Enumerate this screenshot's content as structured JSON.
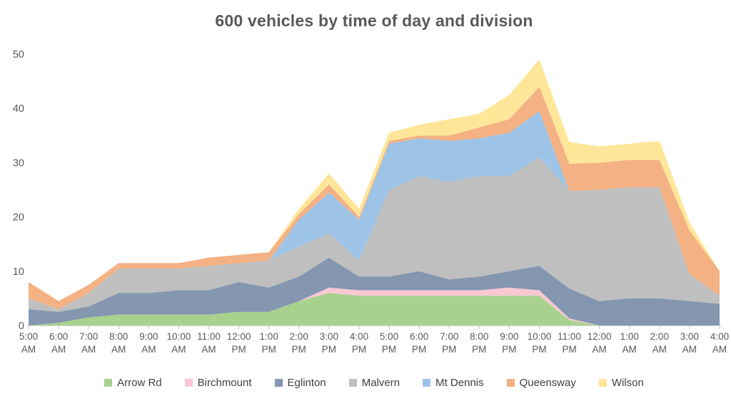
{
  "chart_data": {
    "type": "area",
    "stacked": true,
    "title": "600 vehicles by time of day and division",
    "xlabel": "",
    "ylabel": "",
    "ylim": [
      0,
      50
    ],
    "yticks": [
      0,
      10,
      20,
      30,
      40,
      50
    ],
    "grid": false,
    "legend_position": "bottom",
    "title_color": "#595959",
    "tick_label_color": "#595959",
    "legend_text_color": "#404040",
    "axis_line_color": "#d9d9d9",
    "axis_tick_color": "#bfbfbf",
    "categories": [
      "5:00 AM",
      "6:00 AM",
      "7:00 AM",
      "8:00 AM",
      "9:00 AM",
      "10:00 AM",
      "11:00 AM",
      "12:00 PM",
      "1:00 PM",
      "2:00 PM",
      "3:00 PM",
      "4:00 PM",
      "5:00 PM",
      "6:00 PM",
      "7:00 PM",
      "8:00 PM",
      "9:00 PM",
      "10:00 PM",
      "11:00 PM",
      "12:00 AM",
      "1:00 AM",
      "2:00 AM",
      "3:00 AM",
      "4:00 AM"
    ],
    "series": [
      {
        "name": "Arrow Rd",
        "color": "#a9d18e",
        "values": [
          0,
          0.5,
          1.5,
          2,
          2,
          2,
          2,
          2.5,
          2.5,
          4.5,
          6,
          5.5,
          5.5,
          5.5,
          5.5,
          5.5,
          5.5,
          5.5,
          1,
          0,
          0,
          0,
          0,
          0
        ]
      },
      {
        "name": "Birchmount",
        "color": "#f8c8d3",
        "values": [
          0,
          0,
          0,
          0,
          0,
          0,
          0,
          0,
          0,
          0,
          1,
          1,
          1,
          1,
          1,
          1,
          1.5,
          1,
          0.3,
          0,
          0,
          0,
          0,
          0
        ]
      },
      {
        "name": "Eglinton",
        "color": "#8496b0",
        "values": [
          3,
          2,
          2,
          4,
          4,
          4.5,
          4.5,
          5.5,
          4.5,
          4.5,
          5.5,
          2.5,
          2.5,
          3.5,
          2,
          2.5,
          3,
          4.5,
          5.5,
          4.5,
          5,
          5,
          4.5,
          4
        ]
      },
      {
        "name": "Malvern",
        "color": "#bfbfbf",
        "values": [
          2,
          0.5,
          2.5,
          4.5,
          4.5,
          4,
          4.5,
          3.5,
          5,
          5.5,
          4.5,
          3,
          16,
          17.5,
          18,
          18.5,
          17.5,
          20,
          18,
          20.5,
          20.5,
          20.5,
          5,
          1.5
        ]
      },
      {
        "name": "Mt Dennis",
        "color": "#9dc3e6",
        "values": [
          0,
          0,
          0,
          0,
          0,
          0,
          0,
          0,
          0,
          5,
          7.5,
          7.5,
          8.5,
          7,
          7.5,
          7,
          8,
          8.5,
          0,
          0,
          0,
          0,
          0,
          0
        ]
      },
      {
        "name": "Queensway",
        "color": "#f4b183",
        "values": [
          3,
          1.5,
          1.5,
          1,
          1,
          1,
          1.5,
          1.5,
          1.5,
          1,
          1.5,
          0.5,
          0.5,
          0.5,
          1,
          2,
          2.5,
          4.5,
          5,
          5,
          5,
          5,
          8,
          4.5
        ]
      },
      {
        "name": "Wilson",
        "color": "#ffe699",
        "values": [
          0,
          0,
          0,
          0,
          0,
          0,
          0,
          0,
          0,
          1,
          2,
          1.5,
          1.5,
          2,
          3,
          2.5,
          4.5,
          5,
          4,
          3,
          3,
          3.5,
          1.5,
          0
        ]
      }
    ]
  }
}
